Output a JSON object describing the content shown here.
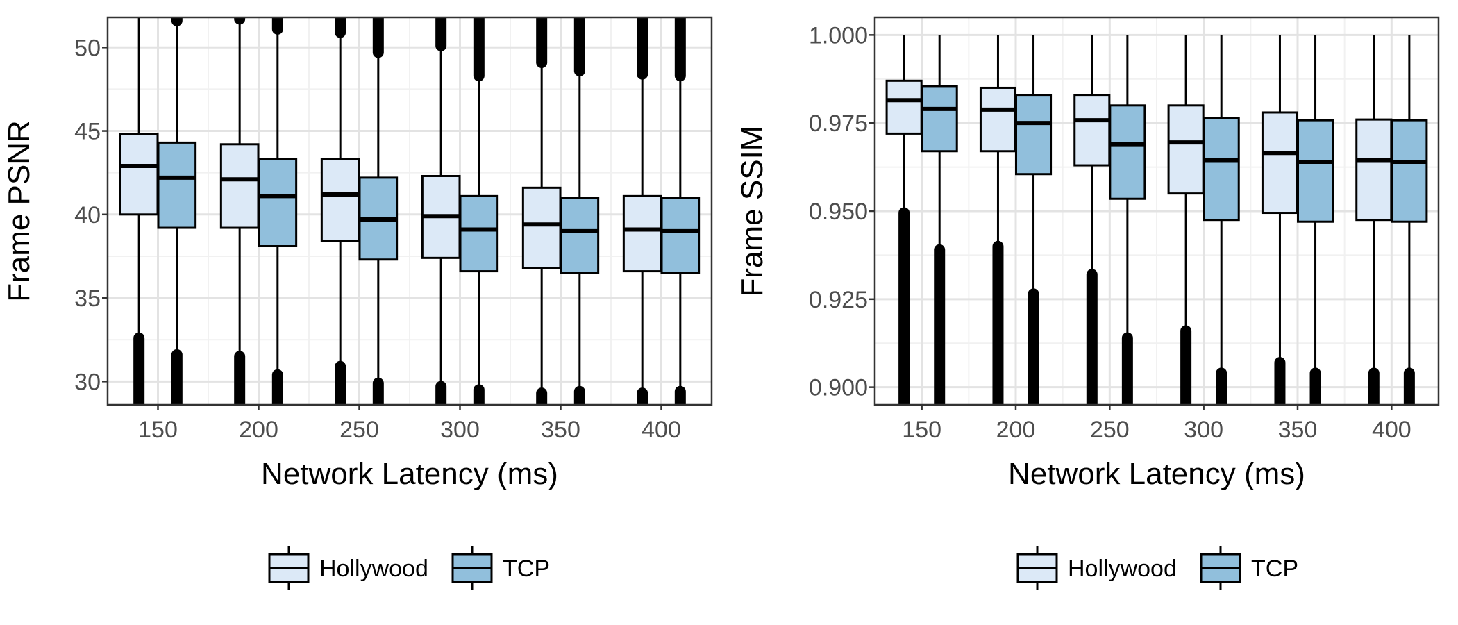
{
  "colors": {
    "hollywood_fill": "#DCE9F7",
    "tcp_fill": "#91BFDC",
    "stroke": "#000000",
    "grid_major": "#E3E3E3",
    "grid_minor": "#F1F1F1",
    "tick_text": "#4D4D4D"
  },
  "chart_data": [
    {
      "type": "box",
      "xlabel": "Network Latency (ms)",
      "ylabel": "Frame PSNR",
      "categories": [
        "150",
        "200",
        "250",
        "300",
        "350",
        "400"
      ],
      "ylim": [
        28.6,
        51.8
      ],
      "yticks": [
        30,
        35,
        40,
        45,
        50
      ],
      "ytick_labels": [
        "30",
        "35",
        "40",
        "45",
        "50"
      ],
      "grid": true,
      "legend_position": "bottom",
      "series": [
        {
          "name": "Hollywood",
          "color": "#DCE9F7",
          "boxes": [
            {
              "q1": 40.0,
              "median": 42.9,
              "q3": 44.8,
              "whisker_low": 32.8,
              "whisker_high": 51.8,
              "outliers_low": [
                28.6,
                32.6
              ],
              "outliers_high": []
            },
            {
              "q1": 39.2,
              "median": 42.1,
              "q3": 44.2,
              "whisker_low": 31.7,
              "whisker_high": 51.5,
              "outliers_low": [
                28.6,
                31.5
              ],
              "outliers_high": [
                51.7,
                51.8
              ]
            },
            {
              "q1": 38.4,
              "median": 41.2,
              "q3": 43.3,
              "whisker_low": 31.0,
              "whisker_high": 50.8,
              "outliers_low": [
                28.6,
                30.9
              ],
              "outliers_high": [
                50.9,
                51.8
              ]
            },
            {
              "q1": 37.4,
              "median": 39.9,
              "q3": 42.3,
              "whisker_low": 29.8,
              "whisker_high": 50.0,
              "outliers_low": [
                28.6,
                29.7
              ],
              "outliers_high": [
                50.1,
                51.8
              ]
            },
            {
              "q1": 36.8,
              "median": 39.4,
              "q3": 41.6,
              "whisker_low": 29.5,
              "whisker_high": 49.0,
              "outliers_low": [
                28.6,
                29.3
              ],
              "outliers_high": [
                49.1,
                51.8
              ]
            },
            {
              "q1": 36.6,
              "median": 39.1,
              "q3": 41.1,
              "whisker_low": 29.5,
              "whisker_high": 48.3,
              "outliers_low": [
                28.6,
                29.3
              ],
              "outliers_high": [
                48.4,
                51.8
              ]
            }
          ]
        },
        {
          "name": "TCP",
          "color": "#91BFDC",
          "boxes": [
            {
              "q1": 39.2,
              "median": 42.2,
              "q3": 44.3,
              "whisker_low": 31.7,
              "whisker_high": 51.5,
              "outliers_low": [
                28.6,
                31.6
              ],
              "outliers_high": [
                51.6,
                51.8
              ]
            },
            {
              "q1": 38.1,
              "median": 41.1,
              "q3": 43.3,
              "whisker_low": 30.5,
              "whisker_high": 51.0,
              "outliers_low": [
                28.6,
                30.4
              ],
              "outliers_high": [
                51.1,
                51.8
              ]
            },
            {
              "q1": 37.3,
              "median": 39.7,
              "q3": 42.2,
              "whisker_low": 30.0,
              "whisker_high": 49.6,
              "outliers_low": [
                28.6,
                29.9
              ],
              "outliers_high": [
                49.7,
                51.8
              ]
            },
            {
              "q1": 36.6,
              "median": 39.1,
              "q3": 41.1,
              "whisker_low": 29.6,
              "whisker_high": 48.2,
              "outliers_low": [
                28.6,
                29.5
              ],
              "outliers_high": [
                48.3,
                51.8
              ]
            },
            {
              "q1": 36.5,
              "median": 39.0,
              "q3": 41.0,
              "whisker_low": 29.5,
              "whisker_high": 48.5,
              "outliers_low": [
                28.6,
                29.4
              ],
              "outliers_high": [
                48.6,
                51.8
              ]
            },
            {
              "q1": 36.5,
              "median": 39.0,
              "q3": 41.0,
              "whisker_low": 29.5,
              "whisker_high": 48.2,
              "outliers_low": [
                28.6,
                29.4
              ],
              "outliers_high": [
                48.3,
                51.8
              ]
            }
          ]
        }
      ],
      "legend": [
        "Hollywood",
        "TCP"
      ]
    },
    {
      "type": "box",
      "xlabel": "Network Latency (ms)",
      "ylabel": "Frame SSIM",
      "categories": [
        "150",
        "200",
        "250",
        "300",
        "350",
        "400"
      ],
      "ylim": [
        0.895,
        1.005
      ],
      "yticks": [
        0.9,
        0.925,
        0.95,
        0.975,
        1.0
      ],
      "ytick_labels": [
        "0.900",
        "0.925",
        "0.950",
        "0.975",
        "1.000"
      ],
      "grid": true,
      "legend_position": "bottom",
      "series": [
        {
          "name": "Hollywood",
          "color": "#DCE9F7",
          "boxes": [
            {
              "q1": 0.972,
              "median": 0.9815,
              "q3": 0.987,
              "whisker_low": 0.9505,
              "whisker_high": 1.0,
              "outliers_low": [
                0.895,
                0.9495
              ],
              "outliers_high": []
            },
            {
              "q1": 0.967,
              "median": 0.9788,
              "q3": 0.985,
              "whisker_low": 0.941,
              "whisker_high": 1.0,
              "outliers_low": [
                0.895,
                0.94
              ],
              "outliers_high": []
            },
            {
              "q1": 0.963,
              "median": 0.9758,
              "q3": 0.983,
              "whisker_low": 0.933,
              "whisker_high": 1.0,
              "outliers_low": [
                0.895,
                0.932
              ],
              "outliers_high": []
            },
            {
              "q1": 0.955,
              "median": 0.9695,
              "q3": 0.98,
              "whisker_low": 0.917,
              "whisker_high": 1.0,
              "outliers_low": [
                0.895,
                0.916
              ],
              "outliers_high": []
            },
            {
              "q1": 0.9495,
              "median": 0.9665,
              "q3": 0.978,
              "whisker_low": 0.908,
              "whisker_high": 1.0,
              "outliers_low": [
                0.895,
                0.907
              ],
              "outliers_high": []
            },
            {
              "q1": 0.9475,
              "median": 0.9645,
              "q3": 0.976,
              "whisker_low": 0.9045,
              "whisker_high": 1.0,
              "outliers_low": [
                0.895,
                0.904
              ],
              "outliers_high": []
            }
          ]
        },
        {
          "name": "TCP",
          "color": "#91BFDC",
          "boxes": [
            {
              "q1": 0.967,
              "median": 0.979,
              "q3": 0.9855,
              "whisker_low": 0.94,
              "whisker_high": 1.0,
              "outliers_low": [
                0.895,
                0.939
              ],
              "outliers_high": []
            },
            {
              "q1": 0.9605,
              "median": 0.975,
              "q3": 0.983,
              "whisker_low": 0.927,
              "whisker_high": 1.0,
              "outliers_low": [
                0.895,
                0.9265
              ],
              "outliers_high": []
            },
            {
              "q1": 0.9535,
              "median": 0.969,
              "q3": 0.98,
              "whisker_low": 0.9145,
              "whisker_high": 1.0,
              "outliers_low": [
                0.895,
                0.914
              ],
              "outliers_high": []
            },
            {
              "q1": 0.9475,
              "median": 0.9645,
              "q3": 0.9765,
              "whisker_low": 0.9045,
              "whisker_high": 1.0,
              "outliers_low": [
                0.895,
                0.904
              ],
              "outliers_high": []
            },
            {
              "q1": 0.947,
              "median": 0.964,
              "q3": 0.9758,
              "whisker_low": 0.9045,
              "whisker_high": 1.0,
              "outliers_low": [
                0.895,
                0.904
              ],
              "outliers_high": []
            },
            {
              "q1": 0.947,
              "median": 0.964,
              "q3": 0.9758,
              "whisker_low": 0.9045,
              "whisker_high": 1.0,
              "outliers_low": [
                0.895,
                0.904
              ],
              "outliers_high": []
            }
          ]
        }
      ],
      "legend": [
        "Hollywood",
        "TCP"
      ]
    }
  ]
}
